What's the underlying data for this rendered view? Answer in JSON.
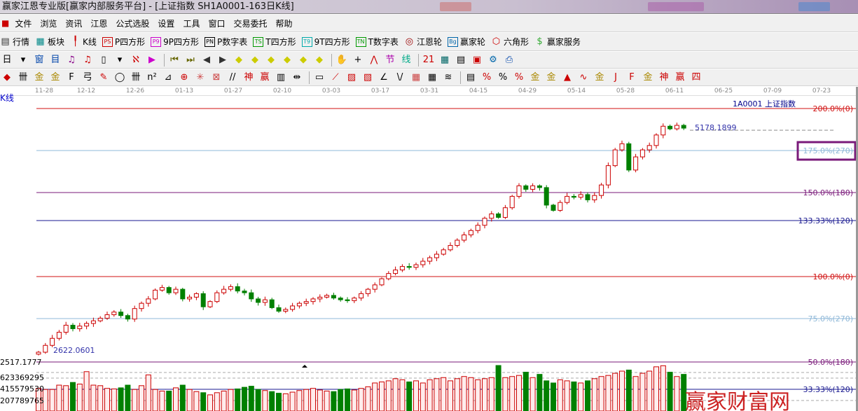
{
  "window": {
    "title": "赢家江恩专业版[赢家内部服务平台] - [上证指数  SH1A0001-163日K线]"
  },
  "menu": [
    "文件",
    "浏览",
    "资讯",
    "江恩",
    "公式选股",
    "设置",
    "工具",
    "窗口",
    "交易委托",
    "帮助"
  ],
  "toolbar1": [
    {
      "icon": "quote-table-icon",
      "glyph": "▤",
      "label": "行情"
    },
    {
      "icon": "sector-icon",
      "glyph": "▦",
      "label": "板块"
    },
    {
      "icon": "kline-icon",
      "glyph": "╿",
      "label": "K线"
    },
    {
      "icon": "ps-icon",
      "glyph": "PS",
      "label": "P四方形"
    },
    {
      "icon": "p9-icon",
      "glyph": "P9",
      "label": "9P四方形"
    },
    {
      "icon": "pn-icon",
      "glyph": "PN",
      "label": "P数字表"
    },
    {
      "icon": "ts-icon",
      "glyph": "TS",
      "label": "T四方形"
    },
    {
      "icon": "t9-icon",
      "glyph": "T9",
      "label": "9T四方形"
    },
    {
      "icon": "tn-icon",
      "glyph": "TN",
      "label": "T数字表"
    },
    {
      "icon": "gann-wheel-icon",
      "glyph": "◎",
      "label": "江恩轮"
    },
    {
      "icon": "big-wheel-icon",
      "glyph": "Bg",
      "label": "赢家轮"
    },
    {
      "icon": "hexagon-icon",
      "glyph": "⬡",
      "label": "六角形"
    },
    {
      "icon": "dollar-icon",
      "glyph": "$",
      "label": "赢家服务"
    }
  ],
  "kline_label": "K线",
  "dates": [
    "11-28",
    "12-12",
    "12-26",
    "01-13",
    "01-27",
    "02-10",
    "03-03",
    "03-17",
    "03-31",
    "04-15",
    "04-29",
    "05-14",
    "05-28",
    "06-11",
    "06-25",
    "07-09",
    "07-23"
  ],
  "chart_data": {
    "type": "candlestick",
    "title": "1A0001  上证指数",
    "price_labels": {
      "high": "5178.1899",
      "low": "2622.0601",
      "axis_bottom": "2517.1777"
    },
    "closes": [
      2622,
      2700,
      2780,
      2850,
      2930,
      2890,
      2920,
      2950,
      2980,
      3010,
      3050,
      3080,
      3040,
      3000,
      3120,
      3180,
      3230,
      3330,
      3360,
      3300,
      3340,
      3230,
      3250,
      3290,
      3140,
      3200,
      3300,
      3340,
      3370,
      3320,
      3300,
      3230,
      3190,
      3220,
      3130,
      3090,
      3110,
      3150,
      3180,
      3200,
      3230,
      3250,
      3270,
      3240,
      3220,
      3210,
      3240,
      3290,
      3340,
      3390,
      3460,
      3520,
      3560,
      3600,
      3590,
      3620,
      3660,
      3700,
      3740,
      3790,
      3840,
      3900,
      3960,
      4010,
      4070,
      4150,
      4200,
      4160,
      4270,
      4400,
      4520,
      4480,
      4520,
      4500,
      4300,
      4240,
      4330,
      4400,
      4390,
      4420,
      4360,
      4410,
      4530,
      4750,
      4930,
      5000,
      4700,
      4850,
      4930,
      4980,
      5100,
      5200,
      5170,
      5210,
      5178
    ],
    "volumes_million": [
      420,
      400,
      400,
      480,
      470,
      530,
      500,
      730,
      480,
      470,
      420,
      410,
      430,
      480,
      400,
      470,
      670,
      400,
      370,
      370,
      430,
      480,
      400,
      360,
      340,
      300,
      340,
      370,
      400,
      410,
      440,
      460,
      400,
      380,
      360,
      330,
      320,
      350,
      380,
      400,
      420,
      390,
      370,
      360,
      400,
      410,
      390,
      420,
      450,
      520,
      540,
      560,
      600,
      580,
      540,
      560,
      520,
      580,
      600,
      620,
      560,
      600,
      640,
      620,
      580,
      600,
      620,
      844,
      620,
      640,
      660,
      720,
      620,
      680,
      560,
      520,
      580,
      560,
      540,
      520,
      560,
      600,
      640,
      660,
      700,
      740,
      760,
      640,
      700,
      740,
      820,
      840,
      720,
      640,
      680
    ],
    "volume_axis_labels": [
      "623369295",
      "415579530",
      "207789765"
    ],
    "gann_lines": [
      {
        "label": "200.0%(0)",
        "color": "#d01010"
      },
      {
        "label": "175.0%(270)",
        "color": "#8fb8d8",
        "highlighted": true
      },
      {
        "label": "150.0%(180)",
        "color": "#7a1a7a"
      },
      {
        "label": "133.33%(120)",
        "color": "#1a1a90"
      },
      {
        "label": "100.0%(0)",
        "color": "#d01010"
      },
      {
        "label": "75.0%(270)",
        "color": "#8fb8d8"
      },
      {
        "label": "50.0%(180)",
        "color": "#7a1a7a"
      },
      {
        "label": "33.33%(120)",
        "color": "#1a1a90"
      }
    ],
    "up_color": "#cc0000",
    "down_color": "#008000"
  },
  "watermark": "赢家财富网"
}
